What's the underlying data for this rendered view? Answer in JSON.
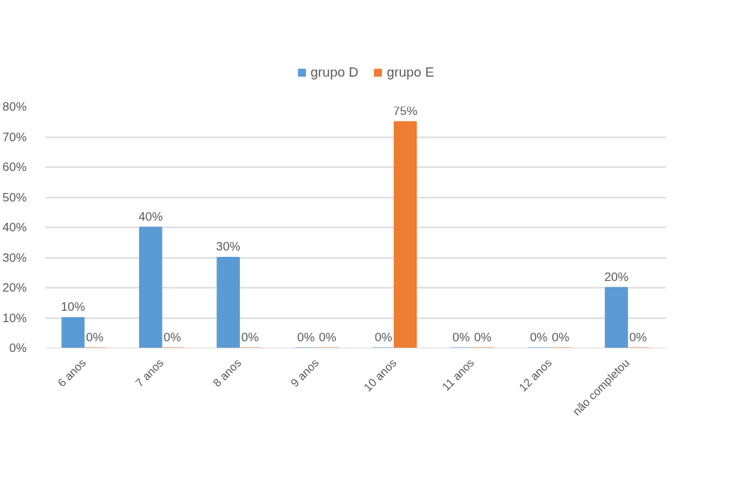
{
  "chart_data": {
    "type": "bar",
    "categories": [
      "6 anos",
      "7 anos",
      "8 anos",
      "9 anos",
      "10 anos",
      "11 anos",
      "12 anos",
      "não completou"
    ],
    "series": [
      {
        "name": "grupo D",
        "color": "#5b9bd5",
        "values": [
          10,
          40,
          30,
          0,
          0,
          0,
          0,
          20
        ],
        "value_labels": [
          "10%",
          "40%",
          "30%",
          "0%",
          "0%",
          "0%",
          "0%",
          "20%"
        ]
      },
      {
        "name": "grupo E",
        "color": "#ed7d31",
        "values": [
          0,
          0,
          0,
          0,
          75,
          0,
          0,
          0
        ],
        "value_labels": [
          "0%",
          "0%",
          "0%",
          "0%",
          "75%",
          "0%",
          "0%",
          "0%"
        ]
      }
    ],
    "ylim": [
      0,
      80
    ],
    "yticks": [
      {
        "value": 0,
        "label": "0%"
      },
      {
        "value": 10,
        "label": "10%"
      },
      {
        "value": 20,
        "label": "20%"
      },
      {
        "value": 30,
        "label": "30%"
      },
      {
        "value": 40,
        "label": "40%"
      },
      {
        "value": 50,
        "label": "50%"
      },
      {
        "value": 60,
        "label": "60%"
      },
      {
        "value": 70,
        "label": "70%"
      },
      {
        "value": 80,
        "label": "80%"
      }
    ],
    "grid": "y",
    "legend": "top"
  }
}
